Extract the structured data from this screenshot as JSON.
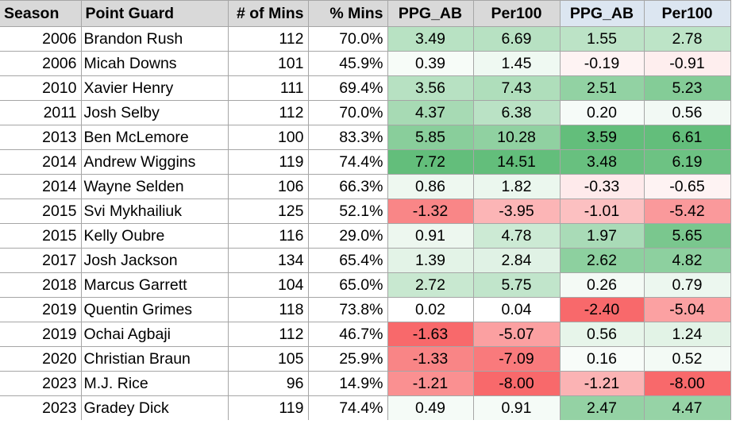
{
  "headers": {
    "season": "Season",
    "point_guard": "Point Guard",
    "mins": "# of Mins",
    "pct_mins": "% Mins",
    "ppg_ab_1": "PPG_AB",
    "per100_1": "Per100",
    "ppg_ab_2": "PPG_AB",
    "per100_2": "Per100"
  },
  "rows": [
    {
      "season": "2006",
      "player": "Brandon Rush",
      "mins": "112",
      "pct": "70.0%",
      "ppg1": "3.49",
      "per1": "6.69",
      "ppg2": "1.55",
      "per2": "2.78"
    },
    {
      "season": "2006",
      "player": "Micah Downs",
      "mins": "101",
      "pct": "45.9%",
      "ppg1": "0.39",
      "per1": "1.45",
      "ppg2": "-0.19",
      "per2": "-0.91"
    },
    {
      "season": "2010",
      "player": "Xavier Henry",
      "mins": "111",
      "pct": "69.4%",
      "ppg1": "3.56",
      "per1": "7.43",
      "ppg2": "2.51",
      "per2": "5.23"
    },
    {
      "season": "2011",
      "player": "Josh Selby",
      "mins": "112",
      "pct": "70.0%",
      "ppg1": "4.37",
      "per1": "6.38",
      "ppg2": "0.20",
      "per2": "0.56"
    },
    {
      "season": "2013",
      "player": "Ben McLemore",
      "mins": "100",
      "pct": "83.3%",
      "ppg1": "5.85",
      "per1": "10.28",
      "ppg2": "3.59",
      "per2": "6.61"
    },
    {
      "season": "2014",
      "player": "Andrew Wiggins",
      "mins": "119",
      "pct": "74.4%",
      "ppg1": "7.72",
      "per1": "14.51",
      "ppg2": "3.48",
      "per2": "6.19"
    },
    {
      "season": "2014",
      "player": "Wayne Selden",
      "mins": "106",
      "pct": "66.3%",
      "ppg1": "0.86",
      "per1": "1.82",
      "ppg2": "-0.33",
      "per2": "-0.65"
    },
    {
      "season": "2015",
      "player": "Svi Mykhailiuk",
      "mins": "125",
      "pct": "52.1%",
      "ppg1": "-1.32",
      "per1": "-3.95",
      "ppg2": "-1.01",
      "per2": "-5.42"
    },
    {
      "season": "2015",
      "player": "Kelly Oubre",
      "mins": "116",
      "pct": "29.0%",
      "ppg1": "0.91",
      "per1": "4.78",
      "ppg2": "1.97",
      "per2": "5.65"
    },
    {
      "season": "2017",
      "player": "Josh Jackson",
      "mins": "134",
      "pct": "65.4%",
      "ppg1": "1.39",
      "per1": "2.84",
      "ppg2": "2.62",
      "per2": "4.82"
    },
    {
      "season": "2018",
      "player": "Marcus Garrett",
      "mins": "104",
      "pct": "65.0%",
      "ppg1": "2.72",
      "per1": "5.75",
      "ppg2": "0.26",
      "per2": "0.79"
    },
    {
      "season": "2019",
      "player": "Quentin Grimes",
      "mins": "118",
      "pct": "73.8%",
      "ppg1": "0.02",
      "per1": "0.04",
      "ppg2": "-2.40",
      "per2": "-5.04"
    },
    {
      "season": "2019",
      "player": "Ochai Agbaji",
      "mins": "112",
      "pct": "46.7%",
      "ppg1": "-1.63",
      "per1": "-5.07",
      "ppg2": "0.56",
      "per2": "1.24"
    },
    {
      "season": "2020",
      "player": "Christian Braun",
      "mins": "105",
      "pct": "25.9%",
      "ppg1": "-1.33",
      "per1": "-7.09",
      "ppg2": "0.16",
      "per2": "0.52"
    },
    {
      "season": "2023",
      "player": "M.J. Rice",
      "mins": "96",
      "pct": "14.9%",
      "ppg1": "-1.21",
      "per1": "-8.00",
      "ppg2": "-1.21",
      "per2": "-8.00"
    },
    {
      "season": "2023",
      "player": "Gradey Dick",
      "mins": "119",
      "pct": "74.4%",
      "ppg1": "0.49",
      "per1": "0.91",
      "ppg2": "2.47",
      "per2": "4.47"
    }
  ],
  "colors": {
    "header_gray": "#d9d9d9",
    "header_blue": "#dce6f1",
    "positive": "#63be7b",
    "negative": "#f8696b",
    "neutral": "#ffffff",
    "grid": "#a6a6a6"
  }
}
